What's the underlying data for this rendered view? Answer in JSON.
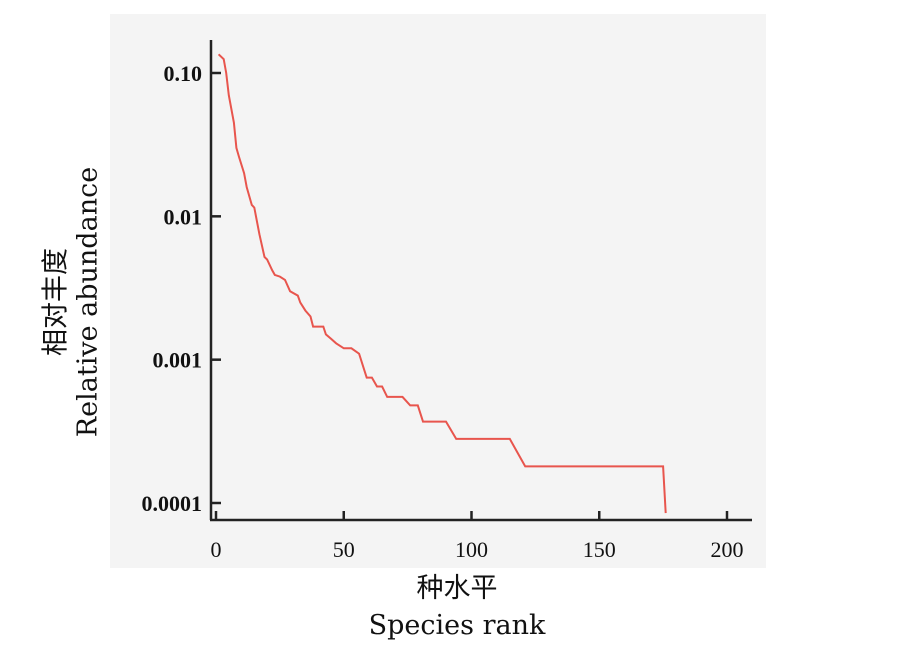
{
  "chart_data": {
    "type": "line",
    "xlabel_cn": "种水平",
    "xlabel": "Species rank",
    "ylabel_cn": "相对丰度",
    "ylabel": "Relative abundance",
    "xlim": [
      0,
      200
    ],
    "ylim": [
      0.0001,
      0.1
    ],
    "yscale": "log",
    "x_ticks": [
      0,
      50,
      100,
      150,
      200
    ],
    "x_tick_labels": [
      "0",
      "50",
      "100",
      "150",
      "200"
    ],
    "y_ticks": [
      0.0001,
      0.001,
      0.01,
      0.1
    ],
    "y_tick_labels": [
      "0.0001",
      "0.001",
      "0.01",
      "0.10"
    ],
    "grid": false,
    "series": [
      {
        "color": "#e8554d",
        "x": [
          1,
          3,
          4,
          5,
          7,
          8,
          9,
          11,
          12,
          14,
          15,
          17,
          19,
          20,
          22,
          23,
          25,
          27,
          29,
          32,
          33,
          35,
          37,
          38,
          40,
          42,
          43,
          45,
          47,
          50,
          53,
          56,
          58,
          59,
          61,
          63,
          65,
          67,
          70,
          73,
          76,
          79,
          81,
          83,
          86,
          90,
          94,
          100,
          108,
          115,
          121,
          130,
          140,
          150,
          160,
          170,
          175,
          176
        ],
        "y": [
          0.135,
          0.125,
          0.1,
          0.07,
          0.045,
          0.03,
          0.026,
          0.02,
          0.016,
          0.012,
          0.0115,
          0.0075,
          0.0052,
          0.005,
          0.0042,
          0.0039,
          0.0038,
          0.0036,
          0.003,
          0.0028,
          0.0025,
          0.0022,
          0.002,
          0.0017,
          0.0017,
          0.0017,
          0.0015,
          0.0014,
          0.0013,
          0.0012,
          0.0012,
          0.0011,
          0.00085,
          0.00075,
          0.00075,
          0.00065,
          0.00065,
          0.00055,
          0.00055,
          0.00055,
          0.00048,
          0.00048,
          0.00037,
          0.00037,
          0.00037,
          0.00037,
          0.00028,
          0.00028,
          0.00028,
          0.00028,
          0.00018,
          0.00018,
          0.00018,
          0.00018,
          0.00018,
          0.00018,
          0.00018,
          8.5e-05
        ]
      }
    ]
  }
}
